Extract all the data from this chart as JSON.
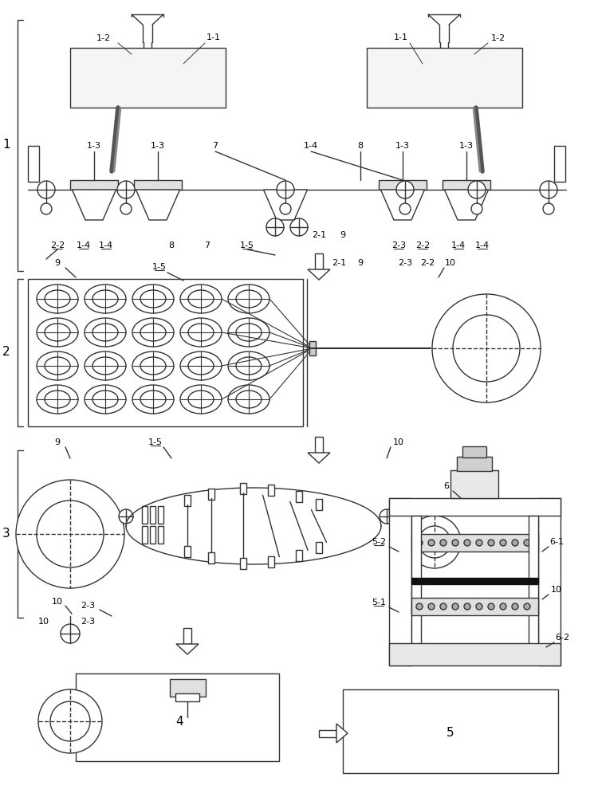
{
  "fig_width": 7.45,
  "fig_height": 10.0,
  "dpi": 100,
  "bg_color": "#ffffff",
  "lc": "#333333",
  "lw": 1.0
}
